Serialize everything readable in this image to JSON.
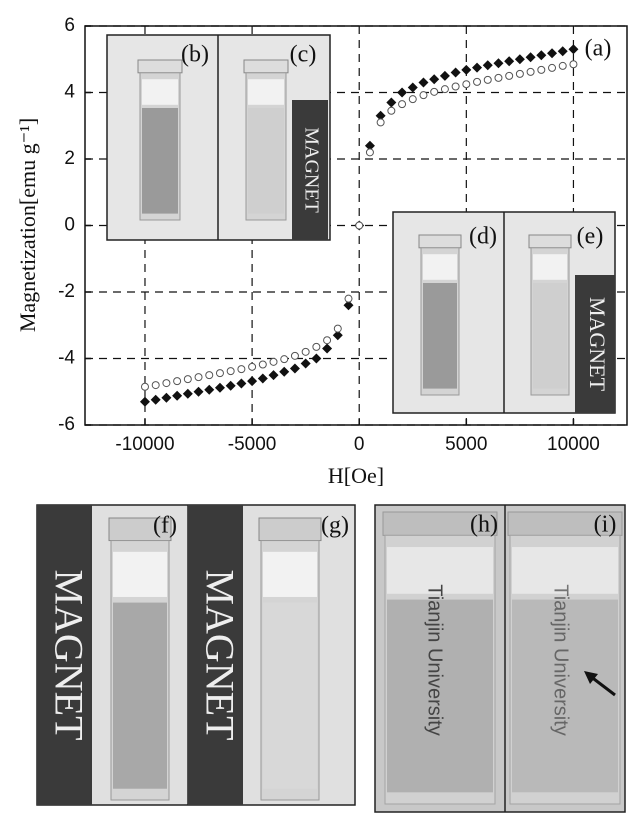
{
  "chart_data": {
    "type": "scatter",
    "y_label": "Magnetization[emu g⁻¹]",
    "x_label": "H[Oe]",
    "annotation": "(a)",
    "x": [
      -10000,
      -9500,
      -9000,
      -8500,
      -8000,
      -7500,
      -7000,
      -6500,
      -6000,
      -5500,
      -5000,
      -4500,
      -4000,
      -3500,
      -3000,
      -2500,
      -2000,
      -1500,
      -1000,
      -500,
      0,
      500,
      1000,
      1500,
      2000,
      2500,
      3000,
      3500,
      4000,
      4500,
      5000,
      5500,
      6000,
      6500,
      7000,
      7500,
      8000,
      8500,
      9000,
      9500,
      10000
    ],
    "series": [
      {
        "marker": "diamond",
        "color": "#111111",
        "values": [
          -5.3,
          -5.24,
          -5.18,
          -5.12,
          -5.06,
          -5.0,
          -4.94,
          -4.88,
          -4.82,
          -4.75,
          -4.68,
          -4.6,
          -4.5,
          -4.4,
          -4.3,
          -4.15,
          -4.0,
          -3.7,
          -3.3,
          -2.4,
          0,
          2.4,
          3.3,
          3.7,
          4.0,
          4.15,
          4.3,
          4.4,
          4.5,
          4.6,
          4.68,
          4.75,
          4.82,
          4.88,
          4.94,
          5.0,
          5.06,
          5.12,
          5.18,
          5.24,
          5.3
        ]
      },
      {
        "marker": "circle",
        "color": "#555555",
        "values": [
          -4.85,
          -4.8,
          -4.74,
          -4.68,
          -4.62,
          -4.56,
          -4.5,
          -4.44,
          -4.38,
          -4.32,
          -4.25,
          -4.18,
          -4.1,
          -4.02,
          -3.92,
          -3.8,
          -3.65,
          -3.45,
          -3.1,
          -2.2,
          0,
          2.2,
          3.1,
          3.45,
          3.65,
          3.8,
          3.92,
          4.02,
          4.1,
          4.18,
          4.25,
          4.32,
          4.38,
          4.44,
          4.5,
          4.56,
          4.62,
          4.68,
          4.74,
          4.8,
          4.85
        ]
      }
    ],
    "xlim": [
      -12800,
      12500
    ],
    "ylim": [
      -6,
      6
    ],
    "xticks": [
      -10000,
      -5000,
      0,
      5000,
      10000
    ],
    "yticks": [
      -6,
      -4,
      -2,
      0,
      2,
      4,
      6
    ],
    "grid": true
  },
  "photos": {
    "labels": [
      "(b)",
      "(c)",
      "(d)",
      "(e)",
      "(f)",
      "(g)",
      "(h)",
      "(i)"
    ],
    "magnet": "MAGNET",
    "text": "Tianjin University"
  }
}
